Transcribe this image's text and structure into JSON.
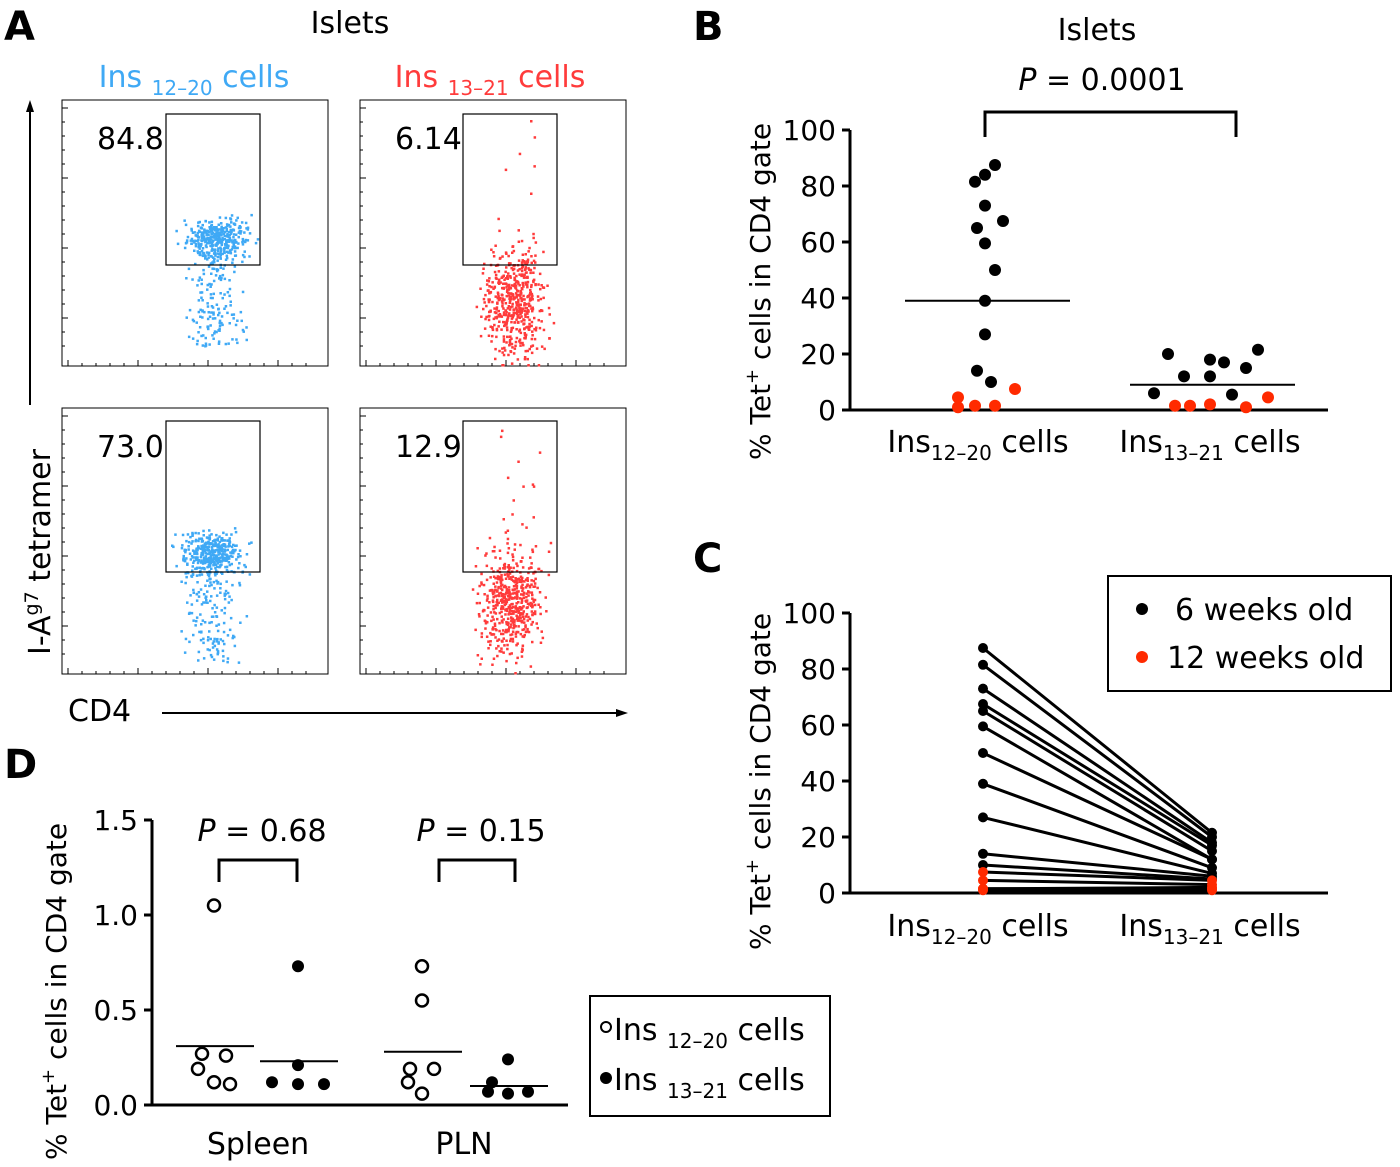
{
  "panels": {
    "A": "A",
    "B": "B",
    "C": "C",
    "D": "D"
  },
  "colors": {
    "ins1220": "#3fa9f5",
    "ins1321": "#ff3b3b",
    "black": "#000000",
    "red": "#ff2a00"
  },
  "panelA": {
    "title": "Islets",
    "col1_base": "Ins",
    "col1_sub": "12–20",
    "col1_tail": "cells",
    "col2_base": "Ins",
    "col2_sub": "13–21",
    "col2_tail": "cells",
    "gate_values": [
      "84.8",
      "6.14",
      "73.0",
      "12.9"
    ],
    "ylabel_base": "I-A",
    "ylabel_sup": "g7",
    "ylabel_tail": " tetramer",
    "xlabel": "CD4"
  },
  "chart_data": [
    {
      "panel": "B",
      "type": "scatter",
      "title": "Islets",
      "annotation": {
        "p_label": "P",
        "p_value": "= 0.0001"
      },
      "ylabel_pre": "% Tet",
      "ylabel_sup": "+",
      "ylabel_post": " cells in CD4 gate",
      "categories": [
        {
          "base": "Ins",
          "sub": "12–20",
          "tail": " cells"
        },
        {
          "base": "Ins",
          "sub": "13–21",
          "tail": " cells"
        }
      ],
      "ylim": [
        0,
        100
      ],
      "yticks": [
        "0",
        "20",
        "40",
        "60",
        "80",
        "100"
      ],
      "ins1220": [
        {
          "v": 87.5,
          "age": "6 weeks old"
        },
        {
          "v": 81.5,
          "age": "6 weeks old"
        },
        {
          "v": 84,
          "age": "6 weeks old"
        },
        {
          "v": 73,
          "age": "6 weeks old"
        },
        {
          "v": 67.5,
          "age": "6 weeks old"
        },
        {
          "v": 65,
          "age": "6 weeks old"
        },
        {
          "v": 59.5,
          "age": "6 weeks old"
        },
        {
          "v": 50,
          "age": "6 weeks old"
        },
        {
          "v": 39,
          "age": "6 weeks old"
        },
        {
          "v": 27,
          "age": "6 weeks old"
        },
        {
          "v": 14,
          "age": "6 weeks old"
        },
        {
          "v": 10,
          "age": "6 weeks old"
        },
        {
          "v": 7.5,
          "age": "12 weeks old"
        },
        {
          "v": 4.5,
          "age": "12 weeks old"
        },
        {
          "v": 1.5,
          "age": "12 weeks old"
        },
        {
          "v": 1.5,
          "age": "12 weeks old"
        },
        {
          "v": 1,
          "age": "12 weeks old"
        }
      ],
      "ins1321": [
        {
          "v": 20,
          "age": "6 weeks old"
        },
        {
          "v": 18,
          "age": "6 weeks old"
        },
        {
          "v": 21.5,
          "age": "6 weeks old"
        },
        {
          "v": 17,
          "age": "6 weeks old"
        },
        {
          "v": 15,
          "age": "6 weeks old"
        },
        {
          "v": 12,
          "age": "6 weeks old"
        },
        {
          "v": 12,
          "age": "6 weeks old"
        },
        {
          "v": 6,
          "age": "6 weeks old"
        },
        {
          "v": 5.5,
          "age": "6 weeks old"
        },
        {
          "v": 4.5,
          "age": "12 weeks old"
        },
        {
          "v": 2,
          "age": "12 weeks old"
        },
        {
          "v": 1.5,
          "age": "12 weeks old"
        },
        {
          "v": 1.5,
          "age": "12 weeks old"
        },
        {
          "v": 1,
          "age": "12 weeks old"
        }
      ],
      "means": [
        39,
        9
      ]
    },
    {
      "panel": "C",
      "type": "line",
      "ylabel_pre": "% Tet",
      "ylabel_sup": "+",
      "ylabel_post": " cells in CD4 gate",
      "categories": [
        {
          "base": "Ins",
          "sub": "12–20",
          "tail": " cells"
        },
        {
          "base": "Ins",
          "sub": "13–21",
          "tail": " cells"
        }
      ],
      "ylim": [
        0,
        100
      ],
      "yticks": [
        "0",
        "20",
        "40",
        "60",
        "80",
        "100"
      ],
      "legend": {
        "position": "top-right",
        "items": [
          "6 weeks old",
          "12 weeks old"
        ]
      },
      "pairs": [
        {
          "a": 87.5,
          "b": 21.5,
          "age": "6 weeks old"
        },
        {
          "a": 81.5,
          "b": 20,
          "age": "6 weeks old"
        },
        {
          "a": 73,
          "b": 18,
          "age": "6 weeks old"
        },
        {
          "a": 67.5,
          "b": 17,
          "age": "6 weeks old"
        },
        {
          "a": 65,
          "b": 15,
          "age": "6 weeks old"
        },
        {
          "a": 59.5,
          "b": 12,
          "age": "6 weeks old"
        },
        {
          "a": 50,
          "b": 12,
          "age": "6 weeks old"
        },
        {
          "a": 39,
          "b": 9,
          "age": "6 weeks old"
        },
        {
          "a": 27,
          "b": 7,
          "age": "6 weeks old"
        },
        {
          "a": 14,
          "b": 6,
          "age": "6 weeks old"
        },
        {
          "a": 10,
          "b": 5,
          "age": "6 weeks old"
        },
        {
          "a": 7.5,
          "b": 4.5,
          "age": "12 weeks old"
        },
        {
          "a": 4.5,
          "b": 3,
          "age": "12 weeks old"
        },
        {
          "a": 1.5,
          "b": 2,
          "age": "12 weeks old"
        },
        {
          "a": 1.5,
          "b": 1.5,
          "age": "12 weeks old"
        },
        {
          "a": 1,
          "b": 1,
          "age": "12 weeks old"
        }
      ]
    },
    {
      "panel": "D",
      "type": "scatter",
      "ylabel_pre": "% Tet",
      "ylabel_sup": "+",
      "ylabel_post": " cells in CD4 gate",
      "categories": [
        "Spleen",
        "PLN"
      ],
      "ylim": [
        0,
        1.5
      ],
      "yticks": [
        "0.0",
        "0.5",
        "1.0",
        "1.5"
      ],
      "annotations": [
        {
          "p_label": "P",
          "p_value": "= 0.68"
        },
        {
          "p_label": "P",
          "p_value": "= 0.15"
        }
      ],
      "legend": {
        "position": "right",
        "items": [
          {
            "base": "Ins ",
            "sub": "12–20",
            "tail": " cells",
            "marker": "open"
          },
          {
            "base": "Ins ",
            "sub": "13–21",
            "tail": " cells",
            "marker": "filled"
          }
        ]
      },
      "series": [
        {
          "group": "Spleen",
          "marker": "open",
          "values": [
            1.05,
            0.27,
            0.26,
            0.19,
            0.12,
            0.11
          ],
          "mean": 0.31
        },
        {
          "group": "Spleen",
          "marker": "filled",
          "values": [
            0.73,
            0.21,
            0.12,
            0.11,
            0.11
          ],
          "mean": 0.23
        },
        {
          "group": "PLN",
          "marker": "open",
          "values": [
            0.73,
            0.55,
            0.19,
            0.19,
            0.12,
            0.06
          ],
          "mean": 0.28
        },
        {
          "group": "PLN",
          "marker": "filled",
          "values": [
            0.24,
            0.12,
            0.07,
            0.07,
            0.06
          ],
          "mean": 0.1
        }
      ]
    }
  ]
}
